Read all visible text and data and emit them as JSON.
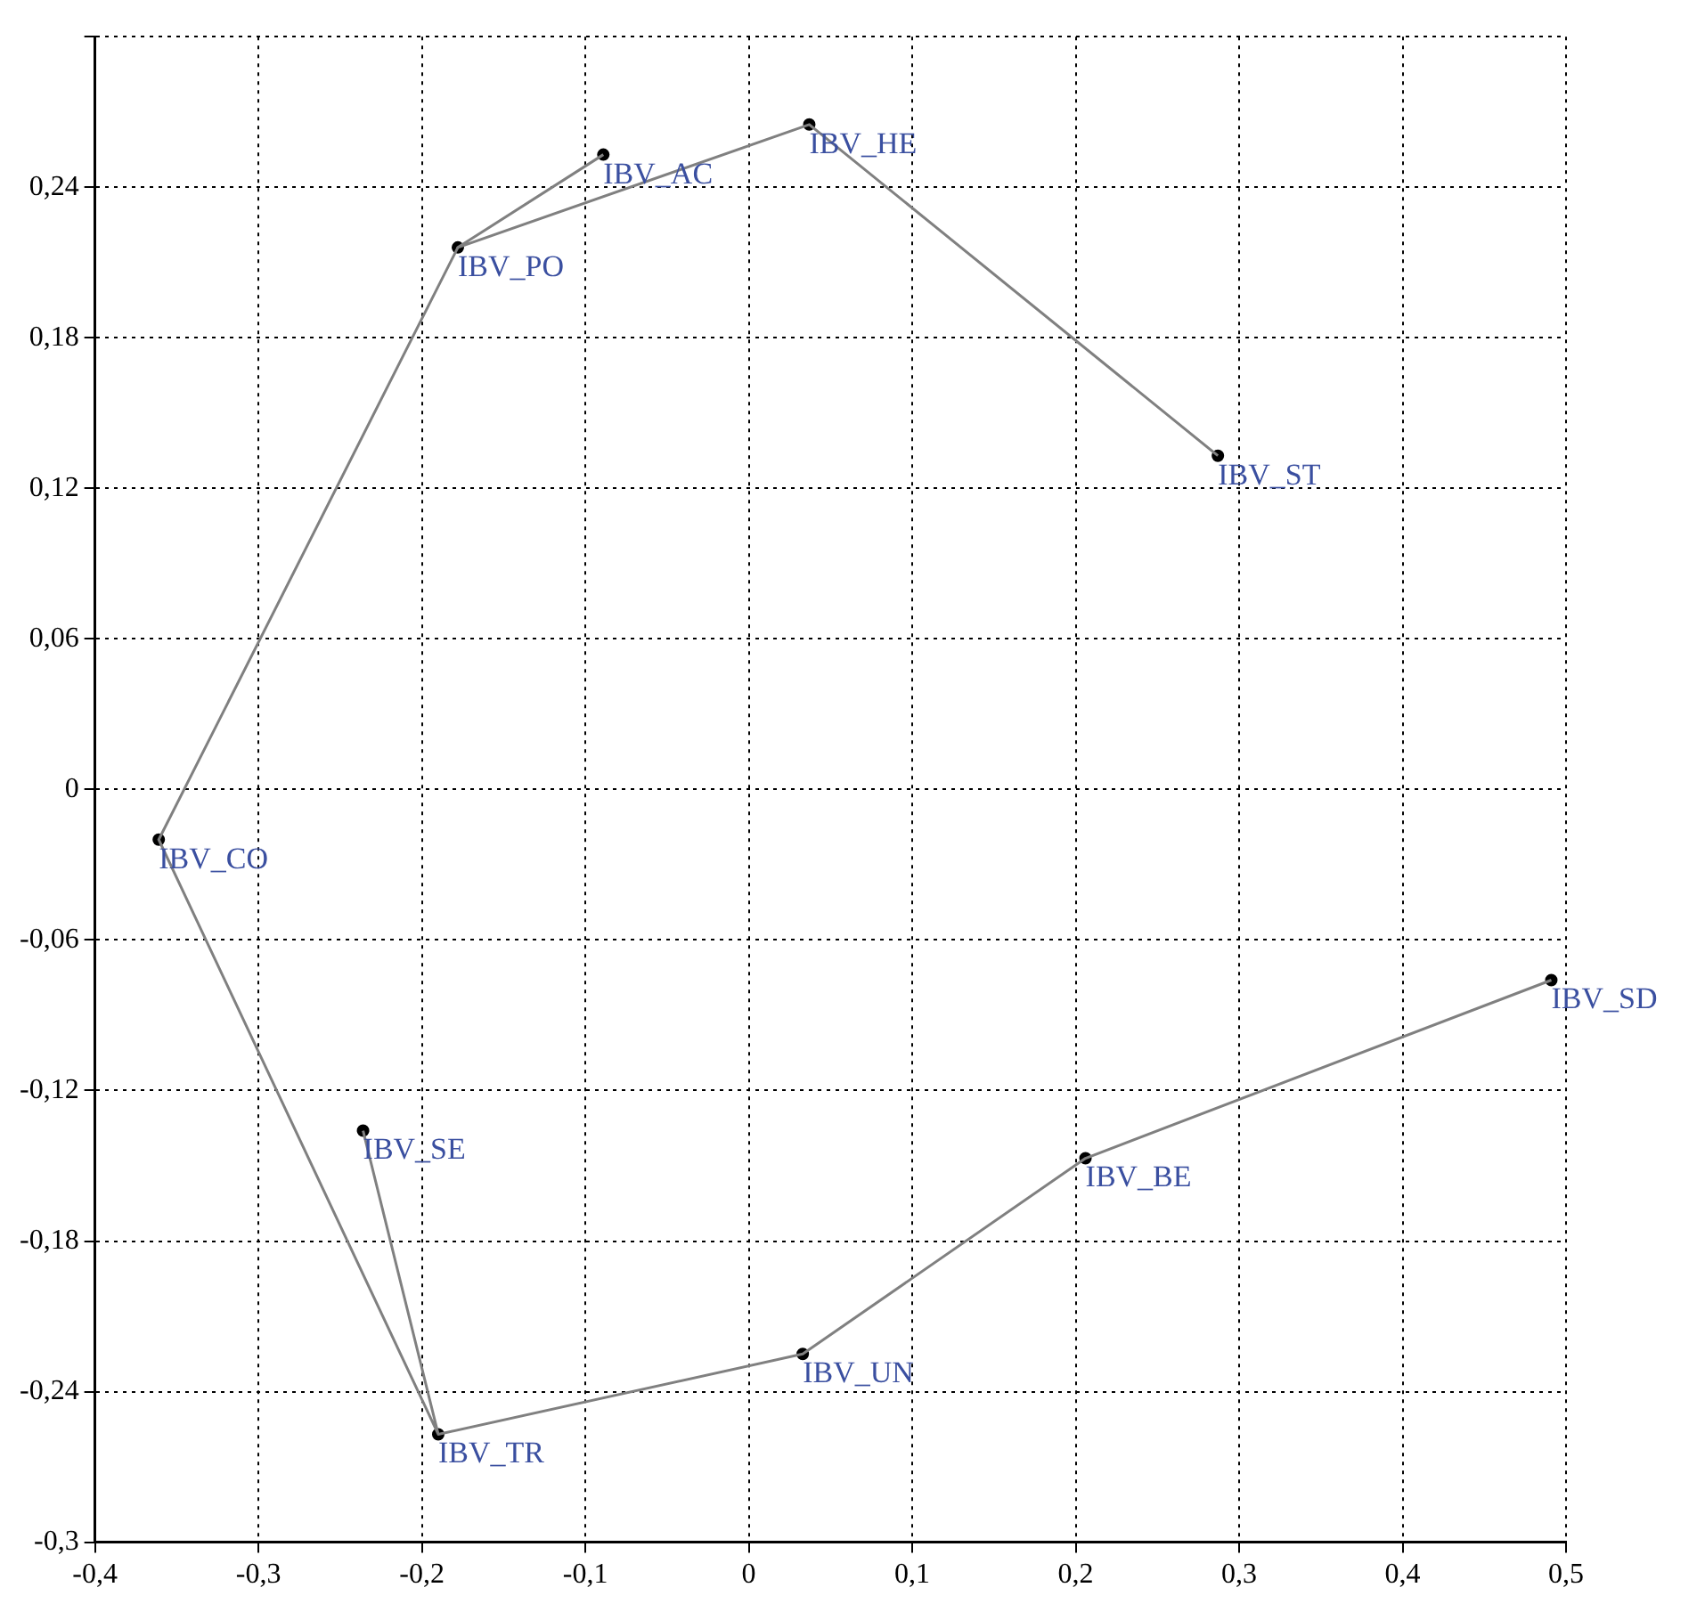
{
  "chart_data": {
    "type": "scatter",
    "xlim": [
      -0.4,
      0.5
    ],
    "ylim": [
      -0.3,
      0.3
    ],
    "xticks": [
      {
        "value": -0.4,
        "label": "-0,4"
      },
      {
        "value": -0.3,
        "label": "-0,3"
      },
      {
        "value": -0.2,
        "label": "-0,2"
      },
      {
        "value": -0.1,
        "label": "-0,1"
      },
      0,
      {
        "value": 0.1,
        "label": "0,1"
      },
      {
        "value": 0.2,
        "label": "0,2"
      },
      {
        "value": 0.3,
        "label": "0,3"
      },
      {
        "value": 0.4,
        "label": "0,4"
      },
      {
        "value": 0.5,
        "label": "0,5"
      }
    ],
    "yticks": [
      {
        "value": -0.3,
        "label": "-0,3"
      },
      {
        "value": -0.24,
        "label": "-0,24"
      },
      {
        "value": -0.18,
        "label": "-0,18"
      },
      {
        "value": -0.12,
        "label": "-0,12"
      },
      {
        "value": -0.06,
        "label": "-0,06"
      },
      0,
      {
        "value": 0.06,
        "label": "0,06"
      },
      {
        "value": 0.12,
        "label": "0,12"
      },
      {
        "value": 0.18,
        "label": "0,18"
      },
      {
        "value": 0.24,
        "label": "0,24"
      },
      {
        "value": 0.3,
        "label": null
      }
    ],
    "grid": true,
    "marker": "circle",
    "line_style": "solid",
    "series": [
      {
        "type": "line",
        "marker": "none",
        "color": "#808080",
        "x": [
          0.287,
          0.037,
          -0.178,
          -0.089
        ],
        "values": [
          0.133,
          0.265,
          0.216,
          0.253
        ]
      },
      {
        "type": "line",
        "marker": "none",
        "color": "#808080",
        "x": [
          -0.178,
          -0.361,
          -0.19,
          -0.236
        ],
        "values": [
          0.216,
          -0.02,
          -0.257,
          -0.136
        ]
      },
      {
        "type": "line",
        "marker": "none",
        "color": "#808080",
        "x": [
          -0.19,
          0.033,
          0.206,
          0.491
        ],
        "values": [
          -0.257,
          -0.225,
          -0.147,
          -0.076
        ]
      },
      {
        "color": "#000000",
        "x": [
          0.287,
          0.037,
          -0.089,
          -0.178,
          -0.361,
          -0.236,
          -0.19,
          0.033,
          0.206,
          0.491
        ],
        "values": [
          0.133,
          0.265,
          0.253,
          0.216,
          -0.02,
          -0.136,
          -0.257,
          -0.225,
          -0.147,
          -0.076
        ]
      }
    ],
    "annotations": [
      {
        "text": "IBV_ST",
        "x": 0.287,
        "y": 0.133
      },
      {
        "text": "IBV_HE",
        "x": 0.037,
        "y": 0.265
      },
      {
        "text": "IBV_AC",
        "x": -0.089,
        "y": 0.253
      },
      {
        "text": "IBV_PO",
        "x": -0.178,
        "y": 0.216
      },
      {
        "text": "IBV_CO",
        "x": -0.361,
        "y": -0.02
      },
      {
        "text": "IBV_SE",
        "x": -0.236,
        "y": -0.136
      },
      {
        "text": "IBV_TR",
        "x": -0.19,
        "y": -0.257
      },
      {
        "text": "IBV_UN",
        "x": 0.033,
        "y": -0.225
      },
      {
        "text": "IBV_BE",
        "x": 0.206,
        "y": -0.147
      },
      {
        "text": "IBV_SD",
        "x": 0.491,
        "y": -0.076
      }
    ]
  }
}
